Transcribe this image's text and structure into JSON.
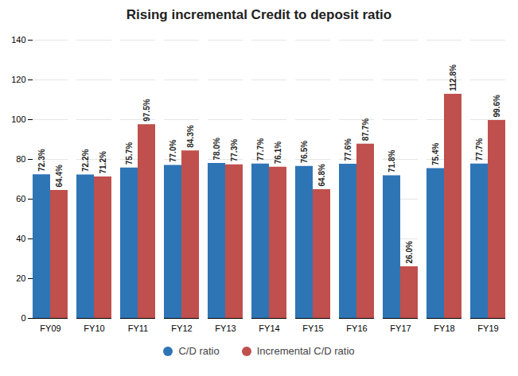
{
  "chart_data": {
    "type": "bar",
    "title": "Rising incremental Credit to deposit ratio",
    "categories": [
      "FY09",
      "FY10",
      "FY11",
      "FY12",
      "FY13",
      "FY14",
      "FY15",
      "FY16",
      "FY17",
      "FY18",
      "FY19"
    ],
    "series": [
      {
        "name": "C/D ratio",
        "color": "#2e75b6",
        "values": [
          72.3,
          72.2,
          75.7,
          77.0,
          78.0,
          77.7,
          76.5,
          77.6,
          71.8,
          75.4,
          77.7
        ],
        "value_labels": [
          "72.3%",
          "72.2%",
          "75.7%",
          "77.0%",
          "78.0%",
          "77.7%",
          "76.5%",
          "77.6%",
          "71.8%",
          "75.4%",
          "77.7%"
        ]
      },
      {
        "name": "Incremental C/D ratio",
        "color": "#c0504d",
        "values": [
          64.4,
          71.2,
          97.5,
          84.3,
          77.3,
          76.1,
          64.8,
          87.7,
          26.0,
          112.8,
          99.6
        ],
        "value_labels": [
          "64.4%",
          "71.2%",
          "97.5%",
          "84.3%",
          "77.3%",
          "76.1%",
          "64.8%",
          "87.7%",
          "26.0%",
          "112.8%",
          "99.6%"
        ]
      }
    ],
    "ylim": [
      0,
      140
    ],
    "yticks": [
      0,
      20,
      40,
      60,
      80,
      100,
      120,
      140
    ],
    "grid": true,
    "data_labels": true,
    "legend": "bottom"
  }
}
